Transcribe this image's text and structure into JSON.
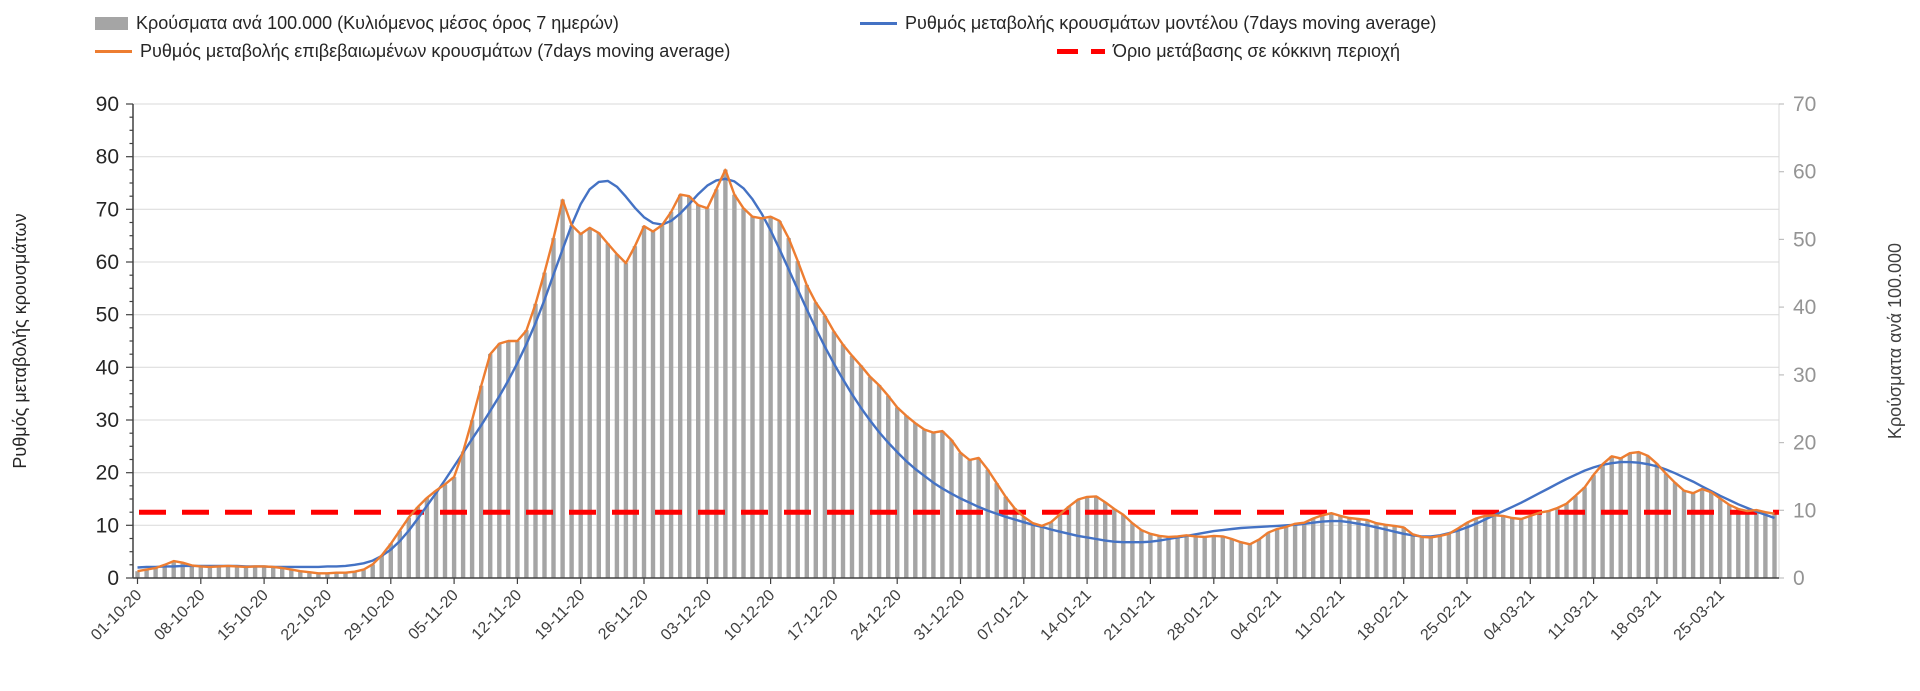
{
  "legend": {
    "bars": "Κρούσματα ανά 100.000 (Κυλιόμενος μέσος όρος 7 ημερών)",
    "confirmed": "Ρυθμός μεταβολής επιβεβαιωμένων κρουσμάτων (7days moving average)",
    "model": "Ρυθμός μεταβολής κρουσμάτων μοντέλου (7days moving average)",
    "threshold": "Όριο μετάβασης σε κόκκινη περιοχή"
  },
  "axes": {
    "left_title": "Ρυθμός μεταβολής κρουσμάτων",
    "right_title": "Κρούσματα ανά 100.000",
    "left_ticks": [
      0,
      10,
      20,
      30,
      40,
      50,
      60,
      70,
      80,
      90
    ],
    "right_ticks": [
      0,
      10,
      20,
      30,
      40,
      50,
      60,
      70
    ]
  },
  "colors": {
    "bar": "#A5A5A5",
    "model_line": "#4472C4",
    "confirmed_line": "#ED7D31",
    "threshold_line": "#FF0000",
    "grid": "#D9D9D9",
    "axis_dark": "#404040",
    "right_tick_text": "#949494",
    "left_tick_text": "#262626"
  },
  "chart_data": {
    "type": "bar",
    "subtype": "combo bar+line, dual axis, daily data 01-10-20 to 31-03-21",
    "x_start": "01-10-20",
    "x_end": "31-03-21",
    "frequency": "daily",
    "categories_weekly": [
      "01-10-20",
      "08-10-20",
      "15-10-20",
      "22-10-20",
      "29-10-20",
      "05-11-20",
      "12-11-20",
      "19-11-20",
      "26-11-20",
      "03-12-20",
      "10-12-20",
      "17-12-20",
      "24-12-20",
      "31-12-20",
      "07-01-21",
      "14-01-21",
      "21-01-21",
      "28-01-21",
      "04-02-21",
      "11-02-21",
      "18-02-21",
      "25-02-21",
      "04-03-21",
      "11-03-21",
      "18-03-21",
      "25-03-21"
    ],
    "left_ylim": [
      0,
      90
    ],
    "right_ylim": [
      0,
      70
    ],
    "grid": "horizontal",
    "legend_position": "top",
    "threshold_left_value": 12.5,
    "series": [
      {
        "name": "Κρούσματα ανά 100.000 (Κυλιόμενος μέσος όρος 7 ημερών)",
        "type": "bar",
        "axis": "right",
        "values": [
          1.0,
          1.2,
          1.5,
          1.9,
          2.5,
          2.3,
          1.9,
          1.7,
          1.6,
          1.7,
          1.8,
          1.7,
          1.6,
          1.7,
          1.7,
          1.6,
          1.5,
          1.2,
          1.0,
          0.9,
          0.7,
          0.7,
          0.8,
          0.8,
          0.9,
          1.2,
          2.0,
          3.3,
          5.1,
          7.0,
          8.9,
          10.5,
          11.8,
          12.9,
          13.8,
          14.9,
          18.7,
          23.3,
          28.4,
          33.1,
          34.6,
          35.0,
          35.0,
          36.6,
          40.5,
          45.1,
          50.2,
          55.9,
          52.1,
          50.8,
          51.7,
          51.0,
          49.4,
          47.8,
          46.5,
          49.0,
          52.0,
          51.2,
          52.1,
          54.1,
          56.6,
          56.4,
          55.1,
          54.6,
          57.4,
          60.3,
          56.6,
          54.6,
          53.4,
          53.1,
          53.4,
          52.7,
          50.2,
          46.8,
          43.3,
          40.7,
          38.7,
          36.4,
          34.5,
          32.8,
          31.4,
          29.7,
          28.5,
          26.9,
          25.2,
          24.0,
          22.9,
          21.9,
          21.5,
          21.7,
          20.4,
          18.5,
          17.4,
          17.7,
          16.0,
          14.0,
          12.0,
          10.3,
          9.0,
          8.1,
          7.7,
          8.2,
          9.4,
          10.6,
          11.6,
          12.0,
          12.1,
          11.2,
          10.2,
          9.3,
          8.1,
          7.1,
          6.5,
          6.2,
          6.1,
          6.1,
          6.3,
          6.1,
          6.1,
          6.2,
          6.1,
          5.8,
          5.3,
          5.0,
          5.7,
          6.7,
          7.2,
          7.5,
          8.0,
          8.2,
          8.8,
          9.3,
          9.6,
          9.2,
          8.9,
          8.7,
          8.6,
          8.1,
          7.9,
          7.7,
          7.5,
          6.5,
          6.1,
          6.0,
          6.2,
          6.5,
          7.3,
          8.2,
          8.8,
          9.2,
          9.3,
          9.2,
          8.9,
          8.7,
          9.2,
          9.6,
          9.9,
          10.3,
          11.0,
          12.1,
          13.4,
          15.2,
          16.8,
          18.0,
          17.7,
          18.4,
          18.6,
          18.0,
          16.9,
          15.4,
          14.1,
          12.9,
          12.5,
          13.1,
          12.7,
          11.7,
          10.8,
          10.2,
          9.9,
          10.0,
          9.7,
          9.5
        ]
      },
      {
        "name": "Ρυθμός μεταβολής επιβεβαιωμένων κρουσμάτων (7days moving average)",
        "type": "line",
        "axis": "left",
        "values": [
          1.3,
          1.6,
          1.9,
          2.5,
          3.2,
          2.9,
          2.4,
          2.2,
          2.1,
          2.2,
          2.3,
          2.2,
          2.1,
          2.2,
          2.2,
          2.1,
          1.9,
          1.6,
          1.3,
          1.1,
          0.9,
          0.9,
          1.0,
          1.0,
          1.2,
          1.6,
          2.6,
          4.3,
          6.5,
          9.0,
          11.5,
          13.5,
          15.2,
          16.6,
          17.8,
          19.2,
          24.0,
          30.0,
          36.5,
          42.5,
          44.5,
          45.0,
          45.0,
          47.0,
          52.0,
          58.0,
          64.5,
          71.8,
          67.0,
          65.3,
          66.5,
          65.5,
          63.5,
          61.5,
          59.8,
          63.0,
          66.8,
          65.8,
          67.0,
          69.5,
          72.8,
          72.5,
          70.8,
          70.2,
          73.8,
          77.5,
          72.8,
          70.2,
          68.6,
          68.3,
          68.6,
          67.8,
          64.5,
          60.2,
          55.6,
          52.3,
          49.8,
          46.8,
          44.3,
          42.2,
          40.3,
          38.2,
          36.6,
          34.6,
          32.4,
          30.8,
          29.4,
          28.2,
          27.6,
          27.9,
          26.2,
          23.8,
          22.4,
          22.8,
          20.6,
          18.0,
          15.4,
          13.2,
          11.6,
          10.4,
          9.9,
          10.6,
          12.1,
          13.6,
          14.9,
          15.4,
          15.5,
          14.4,
          13.1,
          12.0,
          10.4,
          9.1,
          8.4,
          8.0,
          7.8,
          7.9,
          8.1,
          7.9,
          7.8,
          8.0,
          7.9,
          7.4,
          6.8,
          6.4,
          7.3,
          8.6,
          9.3,
          9.7,
          10.3,
          10.5,
          11.3,
          11.9,
          12.3,
          11.8,
          11.4,
          11.2,
          11.0,
          10.4,
          10.1,
          9.9,
          9.6,
          8.3,
          7.8,
          7.7,
          8.0,
          8.4,
          9.4,
          10.5,
          11.3,
          11.8,
          11.9,
          11.8,
          11.4,
          11.2,
          11.8,
          12.4,
          12.7,
          13.3,
          14.1,
          15.6,
          17.2,
          19.6,
          21.6,
          23.1,
          22.7,
          23.7,
          23.9,
          23.2,
          21.7,
          19.8,
          18.1,
          16.6,
          16.1,
          16.9,
          16.3,
          15.1,
          13.9,
          13.1,
          12.7,
          12.9,
          12.5,
          12.2
        ]
      },
      {
        "name": "Ρυθμός μεταβολής κρουσμάτων μοντέλου (7days moving average)",
        "type": "line",
        "axis": "left",
        "values": [
          2.0,
          2.1,
          2.1,
          2.2,
          2.2,
          2.3,
          2.3,
          2.3,
          2.3,
          2.3,
          2.3,
          2.3,
          2.2,
          2.2,
          2.2,
          2.1,
          2.1,
          2.1,
          2.1,
          2.1,
          2.1,
          2.2,
          2.2,
          2.3,
          2.5,
          2.8,
          3.3,
          4.2,
          5.4,
          7.0,
          9.0,
          11.3,
          13.7,
          16.1,
          18.6,
          21.2,
          23.8,
          26.4,
          29.0,
          31.7,
          34.5,
          37.5,
          40.8,
          44.4,
          48.4,
          52.8,
          57.6,
          62.4,
          67.0,
          71.0,
          73.8,
          75.2,
          75.4,
          74.3,
          72.4,
          70.3,
          68.5,
          67.4,
          67.1,
          67.8,
          69.2,
          71.0,
          72.9,
          74.5,
          75.5,
          75.8,
          75.3,
          74.0,
          71.9,
          69.2,
          66.0,
          62.4,
          58.6,
          54.8,
          51.0,
          47.4,
          43.9,
          40.7,
          37.7,
          34.9,
          32.3,
          29.9,
          27.7,
          25.7,
          23.9,
          22.2,
          20.7,
          19.4,
          18.1,
          17.0,
          16.0,
          15.1,
          14.3,
          13.5,
          12.8,
          12.2,
          11.6,
          11.1,
          10.6,
          10.1,
          9.7,
          9.2,
          8.8,
          8.4,
          8.0,
          7.7,
          7.4,
          7.1,
          6.9,
          6.8,
          6.8,
          6.8,
          6.9,
          7.1,
          7.4,
          7.7,
          8.0,
          8.3,
          8.6,
          8.9,
          9.1,
          9.3,
          9.5,
          9.6,
          9.7,
          9.8,
          9.9,
          10.0,
          10.1,
          10.3,
          10.5,
          10.7,
          10.8,
          10.8,
          10.6,
          10.3,
          10.0,
          9.6,
          9.2,
          8.8,
          8.4,
          8.1,
          7.9,
          7.9,
          8.1,
          8.5,
          9.0,
          9.6,
          10.3,
          11.1,
          11.9,
          12.7,
          13.5,
          14.3,
          15.2,
          16.1,
          17.0,
          17.9,
          18.8,
          19.6,
          20.4,
          21.0,
          21.5,
          21.8,
          22.0,
          22.0,
          21.9,
          21.6,
          21.2,
          20.6,
          19.9,
          19.1,
          18.3,
          17.4,
          16.5,
          15.6,
          14.8,
          14.0,
          13.3,
          12.6,
          12.0,
          11.4
        ]
      },
      {
        "name": "Όριο μετάβασης σε κόκκινη περιοχή",
        "type": "threshold",
        "axis": "left",
        "value": 12.5
      }
    ]
  }
}
